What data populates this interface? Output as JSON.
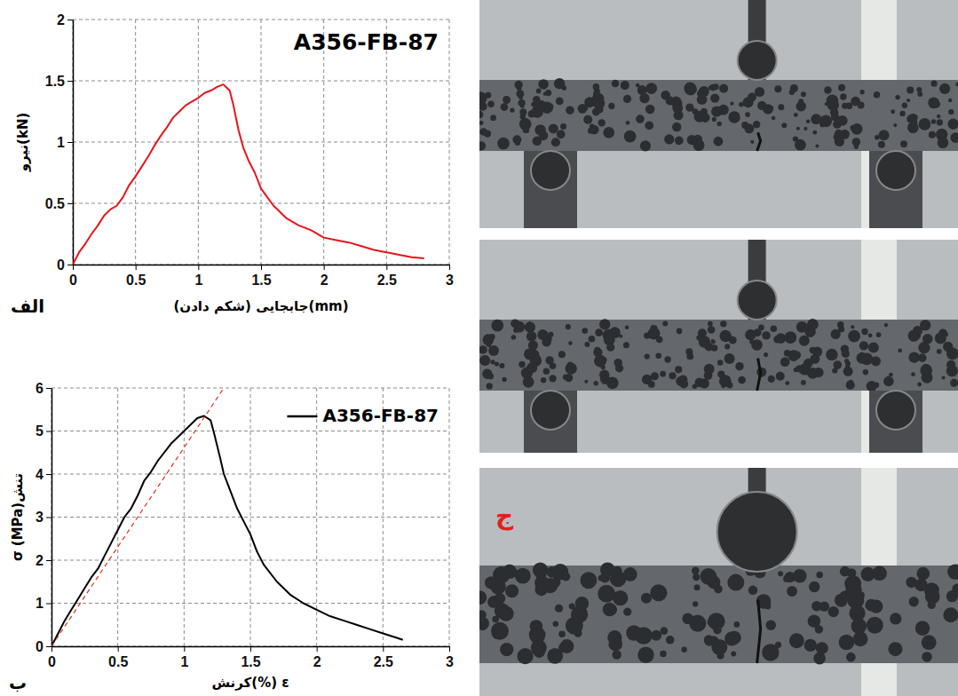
{
  "chart_data": [
    {
      "type": "line",
      "title": "A356-FB-87",
      "panel_label": "الف",
      "x_label": "جابجایی (شکم دادن)(mm)",
      "y_label": "نیرو(kN)",
      "xlim": [
        0,
        3
      ],
      "xticks": [
        0,
        0.5,
        1,
        1.5,
        2,
        2.5,
        3
      ],
      "ylim": [
        0,
        2
      ],
      "yticks": [
        0,
        0.5,
        1,
        1.5,
        2
      ],
      "grid": true,
      "series": [
        {
          "color": "#e8141a",
          "line_style": "solid",
          "x": [
            0,
            0.05,
            0.1,
            0.15,
            0.2,
            0.25,
            0.3,
            0.35,
            0.4,
            0.45,
            0.5,
            0.55,
            0.6,
            0.65,
            0.7,
            0.75,
            0.8,
            0.85,
            0.9,
            0.95,
            1.0,
            1.05,
            1.1,
            1.15,
            1.2,
            1.25,
            1.28,
            1.32,
            1.36,
            1.4,
            1.45,
            1.5,
            1.55,
            1.6,
            1.7,
            1.8,
            1.9,
            2.0,
            2.1,
            2.2,
            2.3,
            2.4,
            2.5,
            2.6,
            2.7,
            2.8
          ],
          "values": [
            0,
            0.1,
            0.17,
            0.25,
            0.32,
            0.4,
            0.45,
            0.48,
            0.55,
            0.65,
            0.72,
            0.8,
            0.88,
            0.97,
            1.05,
            1.12,
            1.2,
            1.25,
            1.3,
            1.33,
            1.36,
            1.4,
            1.42,
            1.45,
            1.47,
            1.42,
            1.3,
            1.1,
            0.95,
            0.85,
            0.75,
            0.62,
            0.55,
            0.48,
            0.38,
            0.32,
            0.28,
            0.22,
            0.2,
            0.18,
            0.15,
            0.12,
            0.1,
            0.08,
            0.06,
            0.05
          ]
        }
      ]
    },
    {
      "type": "line",
      "panel_label": "ب",
      "x_label": "کرنش(%) ε",
      "y_label": "σ (MPa)تنش",
      "xlim": [
        0,
        3
      ],
      "xticks": [
        0,
        0.5,
        1,
        1.5,
        2,
        2.5,
        3
      ],
      "ylim": [
        0,
        6
      ],
      "yticks": [
        0,
        1,
        2,
        3,
        4,
        5,
        6
      ],
      "grid": true,
      "legend": "upper right",
      "series": [
        {
          "name": "A356-FB-87",
          "color": "#000000",
          "line_style": "solid",
          "x": [
            0,
            0.05,
            0.1,
            0.15,
            0.2,
            0.25,
            0.3,
            0.35,
            0.4,
            0.45,
            0.5,
            0.55,
            0.6,
            0.65,
            0.7,
            0.75,
            0.8,
            0.85,
            0.9,
            0.95,
            1.0,
            1.05,
            1.1,
            1.15,
            1.2,
            1.23,
            1.27,
            1.3,
            1.35,
            1.4,
            1.45,
            1.5,
            1.55,
            1.6,
            1.7,
            1.8,
            1.9,
            2.0,
            2.1,
            2.2,
            2.3,
            2.4,
            2.5,
            2.6,
            2.65
          ],
          "values": [
            0,
            0.3,
            0.6,
            0.85,
            1.1,
            1.35,
            1.6,
            1.8,
            2.1,
            2.4,
            2.7,
            3.0,
            3.2,
            3.5,
            3.85,
            4.05,
            4.3,
            4.5,
            4.7,
            4.85,
            5.0,
            5.15,
            5.3,
            5.35,
            5.25,
            4.9,
            4.4,
            4.0,
            3.6,
            3.2,
            2.9,
            2.6,
            2.2,
            1.9,
            1.5,
            1.2,
            1.0,
            0.85,
            0.7,
            0.6,
            0.5,
            0.4,
            0.3,
            0.2,
            0.15
          ]
        },
        {
          "color": "#e0301e",
          "line_style": "dashed",
          "x": [
            0,
            1.3
          ],
          "values": [
            0,
            6
          ]
        }
      ]
    }
  ],
  "photos": {
    "panel_label": "ج"
  }
}
